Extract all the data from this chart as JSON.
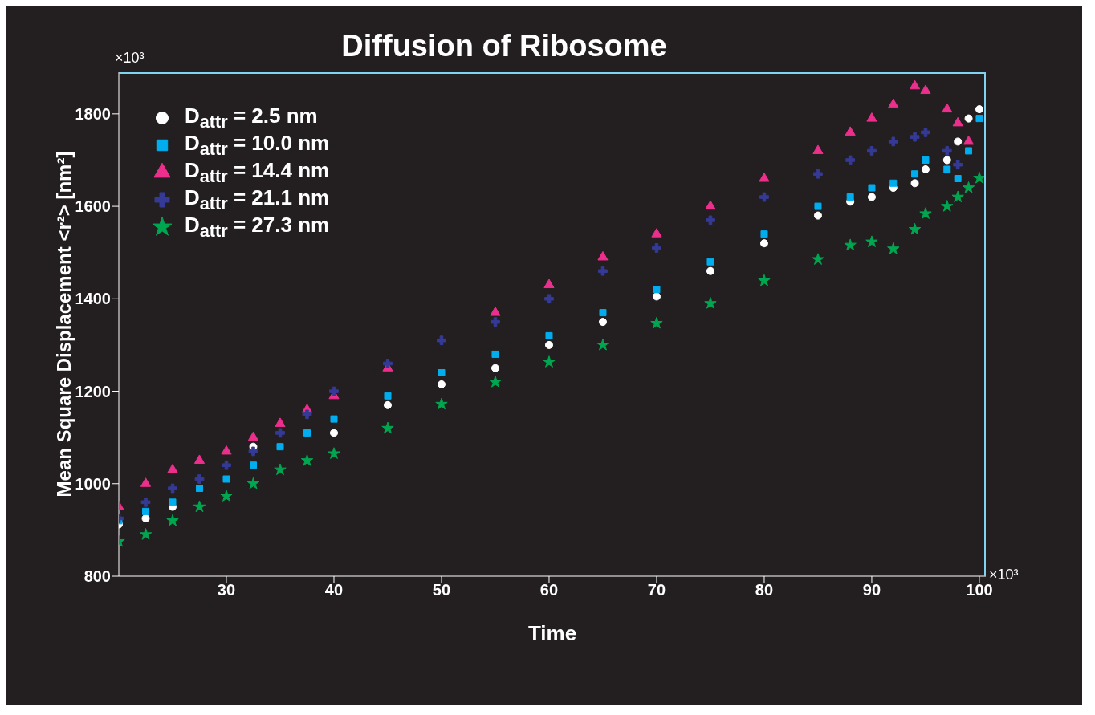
{
  "chart_data": {
    "type": "scatter",
    "title": "Diffusion of Ribosome",
    "xlabel": "Time",
    "ylabel": "Mean Square Displacement <r²> [nm²]",
    "annotations": [
      "×10³",
      "×10³"
    ],
    "x": [
      20,
      22.5,
      25,
      27.5,
      30,
      32.5,
      35,
      37.5,
      40,
      45,
      50,
      55,
      60,
      65,
      70,
      75,
      80,
      85,
      88,
      90,
      92,
      94,
      95,
      97,
      98,
      99,
      100
    ],
    "xlim": [
      20,
      100.6
    ],
    "xticks": [
      30,
      40,
      50,
      60,
      70,
      80,
      90,
      100
    ],
    "ylim": [
      800,
      1890
    ],
    "yticks": [
      800,
      1000,
      1200,
      1400,
      1600,
      1800
    ],
    "grid": false,
    "legend": "top left",
    "series": [
      {
        "name": "D$_{attr}$ = 2.5 nm",
        "color": "#ffffff",
        "marker": "circle",
        "values": [
          912,
          925,
          950,
          null,
          null,
          1080,
          null,
          null,
          1110,
          1170,
          1215,
          1250,
          1300,
          1350,
          1405,
          1460,
          1520,
          1580,
          1610,
          1620,
          1640,
          1650,
          1680,
          1700,
          1740,
          1790,
          1810
        ]
      },
      {
        "name": "D$_{attr}$ = 10.0 nm",
        "color": "#00aeef",
        "marker": "square",
        "values": [
          920,
          940,
          960,
          990,
          1010,
          1040,
          1080,
          1110,
          1140,
          1190,
          1240,
          1280,
          1320,
          1370,
          1420,
          1480,
          1540,
          1600,
          1620,
          1640,
          1650,
          1670,
          1700,
          1680,
          1660,
          1720,
          1790
        ]
      },
      {
        "name": "D$_{attr}$ = 14.4 nm",
        "color": "#ec2e8c",
        "marker": "triangle",
        "values": [
          950,
          1000,
          1030,
          1050,
          1070,
          1100,
          1130,
          1160,
          1190,
          1250,
          null,
          1370,
          1430,
          1490,
          1540,
          1600,
          1660,
          1720,
          1760,
          1790,
          1820,
          1860,
          1850,
          1810,
          1780,
          1740,
          null
        ]
      },
      {
        "name": "D$_{attr}$ = 21.1 nm",
        "color": "#353a96",
        "marker": "cross",
        "values": [
          925,
          960,
          990,
          1010,
          1040,
          1070,
          1110,
          1150,
          1200,
          1260,
          1310,
          1350,
          1400,
          1460,
          1510,
          1570,
          1620,
          1670,
          1700,
          1720,
          1740,
          1750,
          1760,
          1720,
          1690,
          null,
          null
        ]
      },
      {
        "name": "D$_{attr}$ = 27.3 nm",
        "color": "#00a650",
        "marker": "star",
        "values": [
          875,
          890,
          920,
          950,
          973,
          1000,
          1030,
          1050,
          1065,
          1120,
          1172,
          1220,
          1263,
          1300,
          1347,
          1390,
          1439,
          1485,
          1516,
          1523,
          1508,
          1550,
          1584,
          1600,
          1620,
          1640,
          1661
        ]
      }
    ]
  }
}
